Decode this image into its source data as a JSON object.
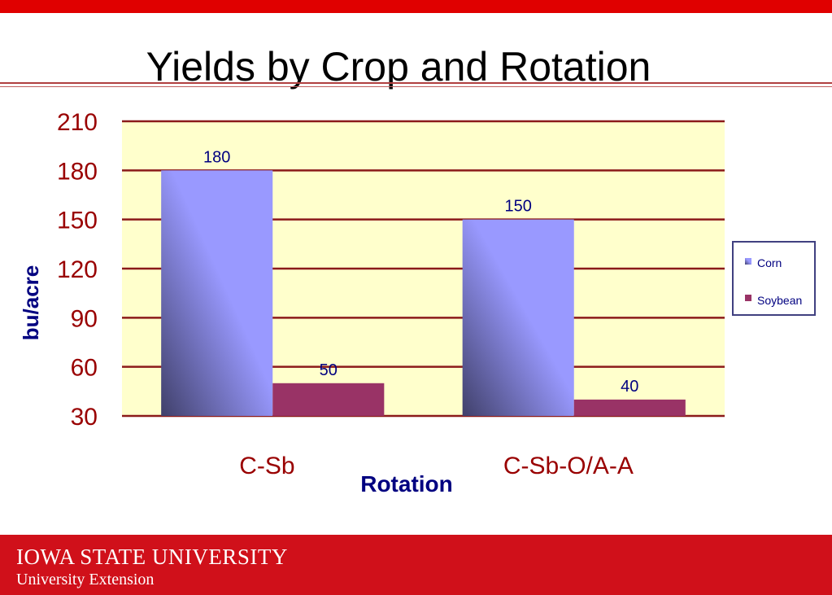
{
  "header": {
    "title": "Yields by Crop and Rotation"
  },
  "footer": {
    "university": "IOWA STATE UNIVERSITY",
    "extension": "University Extension"
  },
  "colors": {
    "accent_red": "#e00000",
    "plot_bg": "#ffffcc",
    "grid": "#8b1a1a",
    "corn": "#9999ff",
    "soybean": "#993366",
    "axis_text": "#990000",
    "label_text": "#000080"
  },
  "chart_data": {
    "type": "bar",
    "categories": [
      "C-Sb",
      "C-Sb-O/A-A"
    ],
    "series": [
      {
        "name": "Corn",
        "values": [
          180,
          150
        ],
        "color": "#9999ff"
      },
      {
        "name": "Soybean",
        "values": [
          50,
          40
        ],
        "color": "#993366"
      }
    ],
    "data_labels": [
      [
        "180",
        "150"
      ],
      [
        "50",
        "40"
      ]
    ],
    "title": "",
    "xlabel": "Rotation",
    "ylabel": "bu/acre",
    "ylim": [
      30,
      210
    ],
    "yticks": [
      30,
      60,
      90,
      120,
      150,
      180,
      210
    ],
    "grid": true,
    "legend": "right"
  }
}
